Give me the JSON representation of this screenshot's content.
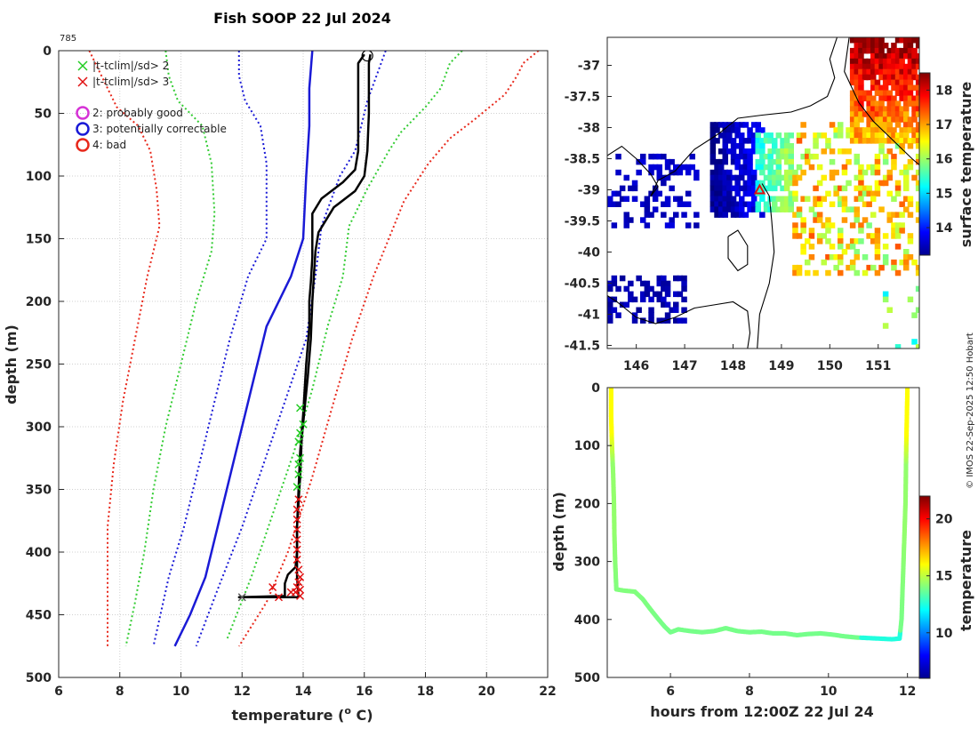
{
  "figure": {
    "title": "Fish SOOP 22 Jul 2024",
    "station_id": "785",
    "credit": "© IMOS 22-Sep-2025 12:50 Hobart"
  },
  "colors": {
    "black": "#000000",
    "red": "#e8291c",
    "green": "#33cc33",
    "blue": "#1a1ad6",
    "magenta": "#d633d6",
    "xgreen": "#22cc22",
    "xred": "#e01010"
  },
  "chart_data": [
    {
      "id": "profile",
      "type": "line",
      "title": "Fish SOOP 22 Jul 2024",
      "xlabel": "temperature (° C)",
      "xlabel_base": "temperature (",
      "xlabel_sup": "o",
      "xlabel_end": " C)",
      "ylabel": "depth (m)",
      "xlim": [
        6,
        22
      ],
      "ylim": [
        0,
        500
      ],
      "y_reversed": true,
      "grid": true,
      "xticks": [
        6,
        8,
        10,
        12,
        14,
        16,
        18,
        20,
        22
      ],
      "yticks": [
        0,
        50,
        100,
        150,
        200,
        250,
        300,
        350,
        400,
        450,
        500
      ],
      "legend": [
        {
          "marker": "x",
          "color": "#22cc22",
          "label": "|t-tclim|/sd> 2"
        },
        {
          "marker": "x",
          "color": "#e01010",
          "label": "|t-tclim|/sd> 3"
        },
        {
          "marker": "o",
          "color": "#d633d6",
          "label": "2: probably good"
        },
        {
          "marker": "o",
          "color": "#1a1ad6",
          "label": "3: potentially correctable"
        },
        {
          "marker": "o",
          "color": "#e8291c",
          "label": "4: bad"
        }
      ],
      "series": [
        {
          "name": "mean climatology",
          "style": "solid",
          "color": "#1a1ad6",
          "width": 2.5,
          "points": [
            [
              14.3,
              0
            ],
            [
              14.2,
              30
            ],
            [
              14.2,
              60
            ],
            [
              14.1,
              100
            ],
            [
              14.0,
              150
            ],
            [
              13.6,
              180
            ],
            [
              12.8,
              220
            ],
            [
              12.3,
              270
            ],
            [
              11.8,
              320
            ],
            [
              11.3,
              370
            ],
            [
              10.8,
              420
            ],
            [
              10.3,
              450
            ],
            [
              9.8,
              475
            ]
          ]
        },
        {
          "name": "mean - 1sd",
          "style": "dotted",
          "color": "#1a1ad6",
          "width": 2,
          "points": [
            [
              11.9,
              0
            ],
            [
              11.9,
              20
            ],
            [
              12.1,
              40
            ],
            [
              12.6,
              60
            ],
            [
              12.8,
              90
            ],
            [
              12.8,
              130
            ],
            [
              12.8,
              150
            ],
            [
              12.2,
              180
            ],
            [
              11.6,
              230
            ],
            [
              11.1,
              280
            ],
            [
              10.6,
              330
            ],
            [
              10.1,
              380
            ],
            [
              9.6,
              420
            ],
            [
              9.1,
              475
            ]
          ]
        },
        {
          "name": "mean + 1sd",
          "style": "dotted",
          "color": "#1a1ad6",
          "width": 2,
          "points": [
            [
              16.7,
              0
            ],
            [
              16.4,
              20
            ],
            [
              16.1,
              40
            ],
            [
              15.9,
              60
            ],
            [
              15.7,
              80
            ],
            [
              15.2,
              100
            ],
            [
              14.6,
              140
            ],
            [
              14.4,
              180
            ],
            [
              14.1,
              230
            ],
            [
              13.4,
              280
            ],
            [
              12.7,
              330
            ],
            [
              12.0,
              380
            ],
            [
              11.2,
              430
            ],
            [
              10.5,
              475
            ]
          ]
        },
        {
          "name": "mean - 2sd",
          "style": "dotted",
          "color": "#33cc33",
          "width": 2,
          "points": [
            [
              9.5,
              0
            ],
            [
              9.6,
              20
            ],
            [
              9.9,
              40
            ],
            [
              10.7,
              60
            ],
            [
              11.0,
              90
            ],
            [
              11.1,
              130
            ],
            [
              11.0,
              160
            ],
            [
              10.5,
              200
            ],
            [
              10.0,
              250
            ],
            [
              9.5,
              300
            ],
            [
              9.1,
              350
            ],
            [
              8.8,
              400
            ],
            [
              8.5,
              440
            ],
            [
              8.2,
              475
            ]
          ]
        },
        {
          "name": "mean + 2sd",
          "style": "dotted",
          "color": "#33cc33",
          "width": 2,
          "points": [
            [
              19.2,
              0
            ],
            [
              18.8,
              10
            ],
            [
              18.5,
              30
            ],
            [
              18.0,
              45
            ],
            [
              17.2,
              65
            ],
            [
              16.8,
              80
            ],
            [
              16.1,
              110
            ],
            [
              15.5,
              140
            ],
            [
              15.3,
              180
            ],
            [
              14.8,
              220
            ],
            [
              14.3,
              270
            ],
            [
              13.7,
              320
            ],
            [
              13.0,
              370
            ],
            [
              12.3,
              420
            ],
            [
              11.5,
              470
            ]
          ]
        },
        {
          "name": "mean - 3sd",
          "style": "dotted",
          "color": "#e8291c",
          "width": 2,
          "points": [
            [
              7.0,
              0
            ],
            [
              7.4,
              20
            ],
            [
              7.9,
              45
            ],
            [
              8.6,
              60
            ],
            [
              9.0,
              80
            ],
            [
              9.2,
              110
            ],
            [
              9.3,
              140
            ],
            [
              8.9,
              180
            ],
            [
              8.5,
              230
            ],
            [
              8.1,
              280
            ],
            [
              7.8,
              330
            ],
            [
              7.6,
              380
            ],
            [
              7.6,
              420
            ],
            [
              7.6,
              475
            ]
          ]
        },
        {
          "name": "mean + 3sd",
          "style": "dotted",
          "color": "#e8291c",
          "width": 2,
          "points": [
            [
              21.7,
              0
            ],
            [
              21.2,
              10
            ],
            [
              21.0,
              20
            ],
            [
              20.6,
              35
            ],
            [
              19.6,
              55
            ],
            [
              18.8,
              70
            ],
            [
              18.1,
              90
            ],
            [
              17.3,
              120
            ],
            [
              16.8,
              150
            ],
            [
              16.3,
              180
            ],
            [
              15.6,
              230
            ],
            [
              15.0,
              280
            ],
            [
              14.3,
              340
            ],
            [
              13.5,
              400
            ],
            [
              12.8,
              440
            ],
            [
              11.9,
              475
            ]
          ]
        },
        {
          "name": "observed profile 1",
          "style": "solid",
          "color": "#000000",
          "width": 2.5,
          "points": [
            [
              16.0,
              3
            ],
            [
              15.8,
              10
            ],
            [
              15.8,
              50
            ],
            [
              15.8,
              80
            ],
            [
              15.7,
              95
            ],
            [
              15.3,
              105
            ],
            [
              14.6,
              118
            ],
            [
              14.3,
              130
            ],
            [
              14.3,
              145
            ],
            [
              14.3,
              165
            ],
            [
              14.25,
              185
            ],
            [
              14.2,
              200
            ],
            [
              14.2,
              220
            ],
            [
              14.1,
              250
            ],
            [
              14.05,
              270
            ],
            [
              14.0,
              290
            ],
            [
              13.9,
              320
            ],
            [
              13.85,
              350
            ],
            [
              13.8,
              380
            ],
            [
              13.8,
              400
            ],
            [
              13.75,
              412
            ],
            [
              13.5,
              418
            ],
            [
              13.4,
              425
            ],
            [
              13.4,
              435
            ],
            [
              11.9,
              436
            ],
            [
              13.85,
              436
            ]
          ]
        },
        {
          "name": "observed profile 2",
          "style": "solid",
          "color": "#000000",
          "width": 2.5,
          "points": [
            [
              16.2,
              3
            ],
            [
              16.15,
              10
            ],
            [
              16.15,
              50
            ],
            [
              16.1,
              80
            ],
            [
              16.0,
              100
            ],
            [
              15.7,
              112
            ],
            [
              15.0,
              125
            ],
            [
              14.5,
              145
            ],
            [
              14.4,
              160
            ],
            [
              14.35,
              180
            ],
            [
              14.3,
              200
            ],
            [
              14.25,
              230
            ],
            [
              14.15,
              260
            ],
            [
              14.05,
              285
            ],
            [
              13.95,
              310
            ],
            [
              13.9,
              340
            ],
            [
              13.85,
              360
            ],
            [
              13.8,
              380
            ],
            [
              13.8,
              400
            ],
            [
              13.8,
              420
            ],
            [
              13.85,
              436
            ]
          ]
        }
      ],
      "open_circle_marker": {
        "x": 16.1,
        "y": 4
      },
      "green_x_flags": [
        [
          13.9,
          285
        ],
        [
          14.0,
          298
        ],
        [
          13.85,
          312
        ],
        [
          13.9,
          325
        ],
        [
          13.85,
          338
        ],
        [
          13.8,
          348
        ],
        [
          13.9,
          305
        ],
        [
          13.85,
          330
        ]
      ],
      "red_x_flags": [
        [
          13.85,
          358
        ],
        [
          13.8,
          366
        ],
        [
          13.8,
          374
        ],
        [
          13.8,
          382
        ],
        [
          13.8,
          390
        ],
        [
          13.8,
          398
        ],
        [
          13.8,
          406
        ],
        [
          13.85,
          414
        ],
        [
          13.9,
          420
        ],
        [
          13.85,
          424
        ],
        [
          13.8,
          428
        ],
        [
          13.9,
          430
        ],
        [
          13.75,
          432
        ],
        [
          13.6,
          432
        ],
        [
          13.9,
          435
        ],
        [
          13.2,
          436
        ],
        [
          13.0,
          428
        ]
      ],
      "other_x_flags": [
        [
          12.0,
          436
        ]
      ]
    },
    {
      "id": "sst_map",
      "type": "heatmap",
      "xlim": [
        145.4,
        151.85
      ],
      "ylim": [
        -41.55,
        -36.55
      ],
      "xticks": [
        146,
        147,
        148,
        149,
        150,
        151
      ],
      "yticks": [
        -37,
        -37.5,
        -38,
        -38.5,
        -39,
        -39.5,
        -40,
        -40.5,
        -41,
        -41.5
      ],
      "colorbar_label": "surface temperature",
      "colorbar_range": [
        13.2,
        18.5
      ],
      "colorbar_ticks": [
        14,
        15,
        16,
        17,
        18
      ],
      "drop_location": {
        "lon": 148.55,
        "lat": -39.0
      }
    },
    {
      "id": "drop_track",
      "type": "scatter",
      "xlabel": "hours from 12:00Z 22 Jul 24",
      "ylabel": "depth (m)",
      "xlim": [
        4.4,
        12.3
      ],
      "ylim": [
        0,
        500
      ],
      "y_reversed": true,
      "xticks": [
        6,
        8,
        10,
        12
      ],
      "yticks": [
        0,
        100,
        200,
        300,
        400,
        500
      ],
      "colorbar_label": "temperature",
      "colorbar_range": [
        6,
        22
      ],
      "colorbar_ticks": [
        10,
        15,
        20
      ],
      "points": [
        [
          4.5,
          0
        ],
        [
          4.5,
          50
        ],
        [
          4.52,
          100
        ],
        [
          4.55,
          150
        ],
        [
          4.57,
          200
        ],
        [
          4.58,
          250
        ],
        [
          4.6,
          300
        ],
        [
          4.63,
          348
        ],
        [
          4.8,
          350
        ],
        [
          5.1,
          352
        ],
        [
          5.3,
          365
        ],
        [
          5.5,
          383
        ],
        [
          5.7,
          400
        ],
        [
          5.85,
          412
        ],
        [
          6.0,
          422
        ],
        [
          6.2,
          417
        ],
        [
          6.5,
          420
        ],
        [
          6.8,
          422
        ],
        [
          7.1,
          420
        ],
        [
          7.4,
          415
        ],
        [
          7.7,
          420
        ],
        [
          8.0,
          422
        ],
        [
          8.3,
          421
        ],
        [
          8.6,
          424
        ],
        [
          8.9,
          424
        ],
        [
          9.2,
          427
        ],
        [
          9.5,
          425
        ],
        [
          9.8,
          424
        ],
        [
          10.1,
          426
        ],
        [
          10.4,
          429
        ],
        [
          10.7,
          431
        ],
        [
          11.0,
          432
        ],
        [
          11.3,
          433
        ],
        [
          11.6,
          434
        ],
        [
          11.8,
          433
        ],
        [
          11.85,
          400
        ],
        [
          11.9,
          300
        ],
        [
          11.95,
          200
        ],
        [
          11.97,
          100
        ],
        [
          12.0,
          0
        ]
      ]
    }
  ]
}
